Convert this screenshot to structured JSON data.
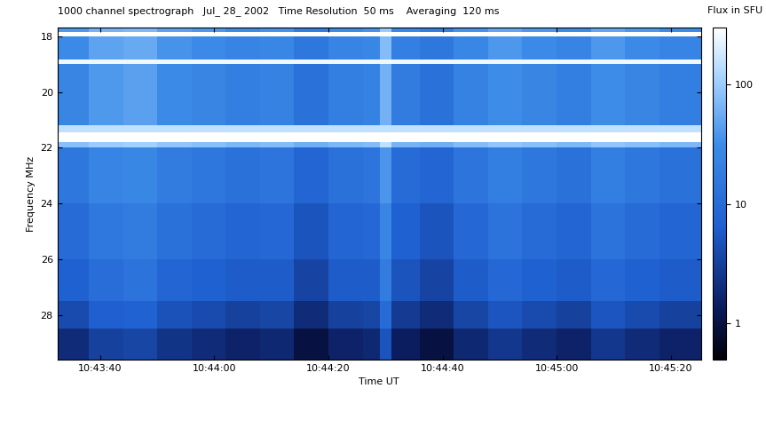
{
  "chart_data": {
    "type": "heatmap",
    "title": "1000 channel spectrograph   Jul_ 28_ 2002   Time Resolution  50 ms    Averaging  120 ms",
    "x_label": "Time UT",
    "y_label": "Frequency MHz",
    "colorbar_label": "Flux in SFU",
    "xlim": [
      38612.5,
      38725.3
    ],
    "xticks": [
      {
        "value": 38620,
        "label": "10:43:40"
      },
      {
        "value": 38640,
        "label": "10:44:00"
      },
      {
        "value": 38660,
        "label": "10:44:20"
      },
      {
        "value": 38680,
        "label": "10:44:40"
      },
      {
        "value": 38700,
        "label": "10:45:00"
      },
      {
        "value": 38720,
        "label": "10:45:20"
      }
    ],
    "ylim": [
      29.6,
      17.7
    ],
    "yticks": [
      18,
      20,
      22,
      24,
      26,
      28
    ],
    "x_edges": [
      38612.5,
      38618,
      38624,
      38630,
      38636,
      38642,
      38648,
      38654,
      38660,
      38666,
      38669,
      38671,
      38676,
      38682,
      38688,
      38694,
      38700,
      38706,
      38712,
      38718,
      38725.3
    ],
    "y_edges": [
      17.7,
      17.85,
      18.0,
      18.85,
      19.0,
      21.2,
      21.45,
      21.8,
      22.0,
      24.0,
      26.0,
      27.5,
      28.5,
      29.6
    ],
    "cells": [
      [
        40,
        64,
        72,
        48,
        40,
        32,
        36,
        20,
        32,
        36,
        100,
        28,
        20,
        36,
        52,
        40,
        32,
        52,
        40,
        32
      ],
      [
        300,
        300,
        300,
        300,
        300,
        300,
        300,
        300,
        300,
        300,
        300,
        300,
        300,
        300,
        300,
        300,
        300,
        300,
        300,
        300
      ],
      [
        30,
        48,
        54,
        36,
        30,
        24,
        27,
        15,
        24,
        27,
        75,
        21,
        15,
        27,
        39,
        30,
        24,
        39,
        30,
        24
      ],
      [
        250,
        250,
        250,
        250,
        250,
        250,
        250,
        250,
        250,
        250,
        250,
        250,
        250,
        250,
        250,
        250,
        250,
        250,
        250,
        250
      ],
      [
        25,
        40,
        45,
        30,
        25,
        20,
        22,
        12,
        20,
        22,
        62,
        18,
        12,
        22,
        32,
        25,
        20,
        32,
        25,
        20
      ],
      [
        150,
        150,
        150,
        150,
        150,
        150,
        150,
        150,
        150,
        150,
        150,
        150,
        150,
        150,
        150,
        150,
        150,
        150,
        150,
        150
      ],
      [
        300,
        300,
        300,
        300,
        300,
        300,
        300,
        300,
        300,
        300,
        300,
        300,
        300,
        300,
        300,
        300,
        300,
        300,
        300,
        300
      ],
      [
        80,
        100,
        110,
        90,
        80,
        70,
        75,
        60,
        70,
        75,
        150,
        65,
        60,
        75,
        90,
        80,
        70,
        90,
        80,
        70
      ],
      [
        15,
        24,
        27,
        18,
        15,
        12,
        14,
        8,
        12,
        14,
        38,
        10,
        8,
        14,
        20,
        15,
        12,
        20,
        15,
        12
      ],
      [
        10,
        16,
        18,
        12,
        10,
        8,
        9,
        5,
        8,
        9,
        25,
        7,
        5,
        9,
        13,
        10,
        8,
        13,
        10,
        8
      ],
      [
        7,
        11,
        13,
        8,
        7,
        6,
        6,
        3.5,
        6,
        6,
        18,
        5,
        3.5,
        6,
        9,
        7,
        6,
        9,
        7,
        6
      ],
      [
        4,
        6.4,
        7.2,
        4.8,
        4,
        3.2,
        3.6,
        2,
        3.2,
        3.6,
        10,
        2.8,
        2,
        3.6,
        5.2,
        4,
        3.2,
        5.2,
        4,
        3.2
      ],
      [
        2,
        3.2,
        3.6,
        2.4,
        2,
        1.6,
        1.8,
        1,
        1.6,
        1.8,
        5,
        1.4,
        1,
        1.8,
        2.6,
        2,
        1.6,
        2.6,
        2,
        1.6
      ]
    ],
    "colorbar_lim": [
      0.5,
      300
    ],
    "colorbar_ticks": [
      1,
      10,
      100
    ]
  }
}
